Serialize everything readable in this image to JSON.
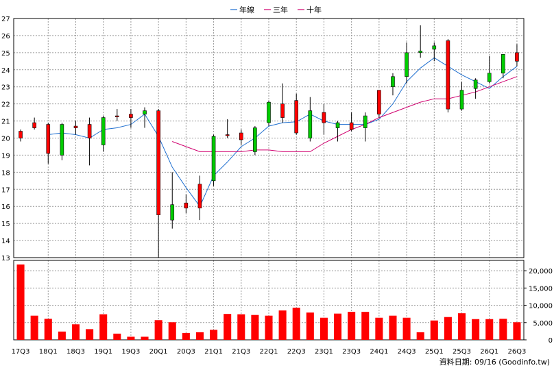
{
  "chart_data": {
    "type": "candlestick+bar",
    "legend": [
      {
        "name": "年線",
        "color": "#1f6fd0"
      },
      {
        "name": "三年",
        "color": "#d0006f"
      },
      {
        "name": "十年",
        "color": "#d0006f"
      }
    ],
    "price_axis": {
      "ylim": [
        13,
        27
      ],
      "ticks": [
        13,
        14,
        15,
        16,
        17,
        18,
        19,
        20,
        21,
        22,
        23,
        24,
        25,
        26,
        27
      ]
    },
    "volume_axis": {
      "ylim": [
        0,
        23000
      ],
      "ticks": [
        0,
        5000,
        10000,
        15000,
        20000
      ],
      "tick_labels": [
        "0",
        "5,000",
        "10,000",
        "15,000",
        "20,000"
      ]
    },
    "x_ticks": [
      {
        "i": 0,
        "label": "17Q3"
      },
      {
        "i": 2,
        "label": "18Q1"
      },
      {
        "i": 4,
        "label": "18Q3"
      },
      {
        "i": 6,
        "label": "19Q1"
      },
      {
        "i": 8,
        "label": "19Q3"
      },
      {
        "i": 10,
        "label": "20Q1"
      },
      {
        "i": 12,
        "label": "20Q3"
      },
      {
        "i": 14,
        "label": "21Q1"
      },
      {
        "i": 16,
        "label": "21Q3"
      },
      {
        "i": 18,
        "label": "22Q1"
      },
      {
        "i": 20,
        "label": "22Q3"
      },
      {
        "i": 22,
        "label": "23Q1"
      },
      {
        "i": 24,
        "label": "23Q3"
      },
      {
        "i": 26,
        "label": "24Q1"
      },
      {
        "i": 28,
        "label": "24Q3"
      },
      {
        "i": 30,
        "label": "25Q1"
      },
      {
        "i": 32,
        "label": "25Q3"
      },
      {
        "i": 34,
        "label": "26Q1"
      },
      {
        "i": 36,
        "label": "26Q3"
      }
    ],
    "n_slots": 37,
    "candles": [
      {
        "o": 20.0,
        "c": 20.4,
        "h": 20.5,
        "l": 19.8
      },
      {
        "o": 20.6,
        "c": 20.9,
        "h": 21.2,
        "l": 20.5
      },
      {
        "o": 19.1,
        "c": 20.8,
        "h": 20.9,
        "l": 18.5
      },
      {
        "o": 20.8,
        "c": 19.0,
        "h": 20.9,
        "l": 18.7
      },
      {
        "o": 20.6,
        "c": 20.7,
        "h": 21.0,
        "l": 20.2
      },
      {
        "o": 20.0,
        "c": 20.8,
        "h": 21.2,
        "l": 18.4
      },
      {
        "o": 21.2,
        "c": 19.6,
        "h": 21.3,
        "l": 19.2
      },
      {
        "o": 21.3,
        "c": 21.3,
        "h": 21.7,
        "l": 21.0
      },
      {
        "o": 21.2,
        "c": 21.4,
        "h": 21.7,
        "l": 20.6
      },
      {
        "o": 21.6,
        "c": 21.4,
        "h": 21.8,
        "l": 20.6
      },
      {
        "o": 15.5,
        "c": 21.6,
        "h": 21.7,
        "l": 13.0
      },
      {
        "o": 16.1,
        "c": 15.2,
        "h": 18.0,
        "l": 14.7
      },
      {
        "o": 15.9,
        "c": 16.2,
        "h": 16.7,
        "l": 15.6
      },
      {
        "o": 15.9,
        "c": 17.3,
        "h": 17.8,
        "l": 15.2
      },
      {
        "o": 20.1,
        "c": 17.5,
        "h": 20.2,
        "l": 17.2
      },
      {
        "o": 20.2,
        "c": 20.2,
        "h": 21.1,
        "l": 20.0
      },
      {
        "o": 19.9,
        "c": 20.3,
        "h": 20.5,
        "l": 19.6
      },
      {
        "o": 20.6,
        "c": 19.2,
        "h": 20.7,
        "l": 19.0
      },
      {
        "o": 22.1,
        "c": 20.9,
        "h": 22.2,
        "l": 20.7
      },
      {
        "o": 21.2,
        "c": 22.0,
        "h": 23.2,
        "l": 20.9
      },
      {
        "o": 20.3,
        "c": 22.2,
        "h": 22.6,
        "l": 20.2
      },
      {
        "o": 21.6,
        "c": 20.0,
        "h": 22.4,
        "l": 19.8
      },
      {
        "o": 20.9,
        "c": 21.5,
        "h": 22.0,
        "l": 20.2
      },
      {
        "o": 20.9,
        "c": 20.6,
        "h": 21.0,
        "l": 19.8
      },
      {
        "o": 20.5,
        "c": 20.9,
        "h": 21.5,
        "l": 20.4
      },
      {
        "o": 21.3,
        "c": 20.6,
        "h": 21.5,
        "l": 19.8
      },
      {
        "o": 21.4,
        "c": 22.8,
        "h": 22.8,
        "l": 21.2
      },
      {
        "o": 23.6,
        "c": 23.0,
        "h": 23.8,
        "l": 22.5
      },
      {
        "o": 25.0,
        "c": 23.6,
        "h": 25.6,
        "l": 23.2
      },
      {
        "o": 25.1,
        "c": 25.0,
        "h": 26.6,
        "l": 24.7
      },
      {
        "o": 25.4,
        "c": 25.2,
        "h": 25.6,
        "l": 24.5
      },
      {
        "o": 21.7,
        "c": 25.7,
        "h": 25.8,
        "l": 21.5
      },
      {
        "o": 22.8,
        "c": 21.7,
        "h": 23.3,
        "l": 21.6
      },
      {
        "o": 23.4,
        "c": 22.9,
        "h": 23.5,
        "l": 22.3
      },
      {
        "o": 23.8,
        "c": 23.3,
        "h": 24.8,
        "l": 23.2
      },
      {
        "o": 24.9,
        "c": 23.8,
        "h": 24.9,
        "l": 23.5
      },
      {
        "o": 24.5,
        "c": 25.0,
        "h": 25.5,
        "l": 24.2
      }
    ],
    "series": [
      {
        "name": "年線",
        "color": "#1f6fd0",
        "x": [
          2,
          3,
          4,
          5,
          6,
          7,
          8,
          9,
          10,
          11,
          12,
          13,
          14,
          15,
          16,
          17,
          18,
          19,
          20,
          21,
          22,
          23,
          24,
          25,
          26,
          27,
          28,
          29,
          30,
          31,
          32,
          33,
          34,
          35,
          36
        ],
        "values": [
          20.2,
          20.3,
          20.2,
          20.0,
          20.5,
          20.6,
          20.8,
          21.4,
          20.1,
          18.3,
          17.1,
          16.0,
          17.8,
          18.6,
          19.5,
          20.0,
          20.7,
          20.9,
          20.95,
          21.4,
          21.0,
          20.8,
          20.8,
          20.8,
          21.1,
          22.0,
          23.3,
          24.1,
          24.7,
          24.2,
          23.7,
          23.3,
          22.9,
          23.6,
          24.2
        ]
      },
      {
        "name": "三年",
        "color": "#d0006f",
        "x": [
          11,
          12,
          13,
          14,
          15,
          16,
          17,
          18,
          19,
          20,
          21,
          22,
          23,
          24,
          25,
          26,
          27,
          28,
          29,
          30,
          31,
          32,
          33,
          34,
          35,
          36
        ],
        "values": [
          19.8,
          19.5,
          19.2,
          19.2,
          19.2,
          19.2,
          19.3,
          19.3,
          19.2,
          19.2,
          19.2,
          19.7,
          20.1,
          20.5,
          20.8,
          21.2,
          21.5,
          21.8,
          22.1,
          22.3,
          22.3,
          22.5,
          22.7,
          23.0,
          23.3,
          23.6
        ]
      }
    ],
    "volume": [
      21800,
      7000,
      6100,
      2400,
      4500,
      3100,
      7400,
      1800,
      900,
      900,
      5700,
      5100,
      2000,
      2200,
      2900,
      7500,
      7400,
      7200,
      7000,
      8500,
      9300,
      7900,
      6400,
      7600,
      8100,
      8100,
      6400,
      7000,
      6400,
      2200,
      5600,
      6600,
      7700,
      6000,
      6000,
      6100,
      5100
    ],
    "source_label": "資料日期: 09/16  (Goodinfo.tw)"
  },
  "colors": {
    "up": "#ff0000",
    "down": "#00cc00",
    "grid": "#999999",
    "frame": "#000000"
  }
}
